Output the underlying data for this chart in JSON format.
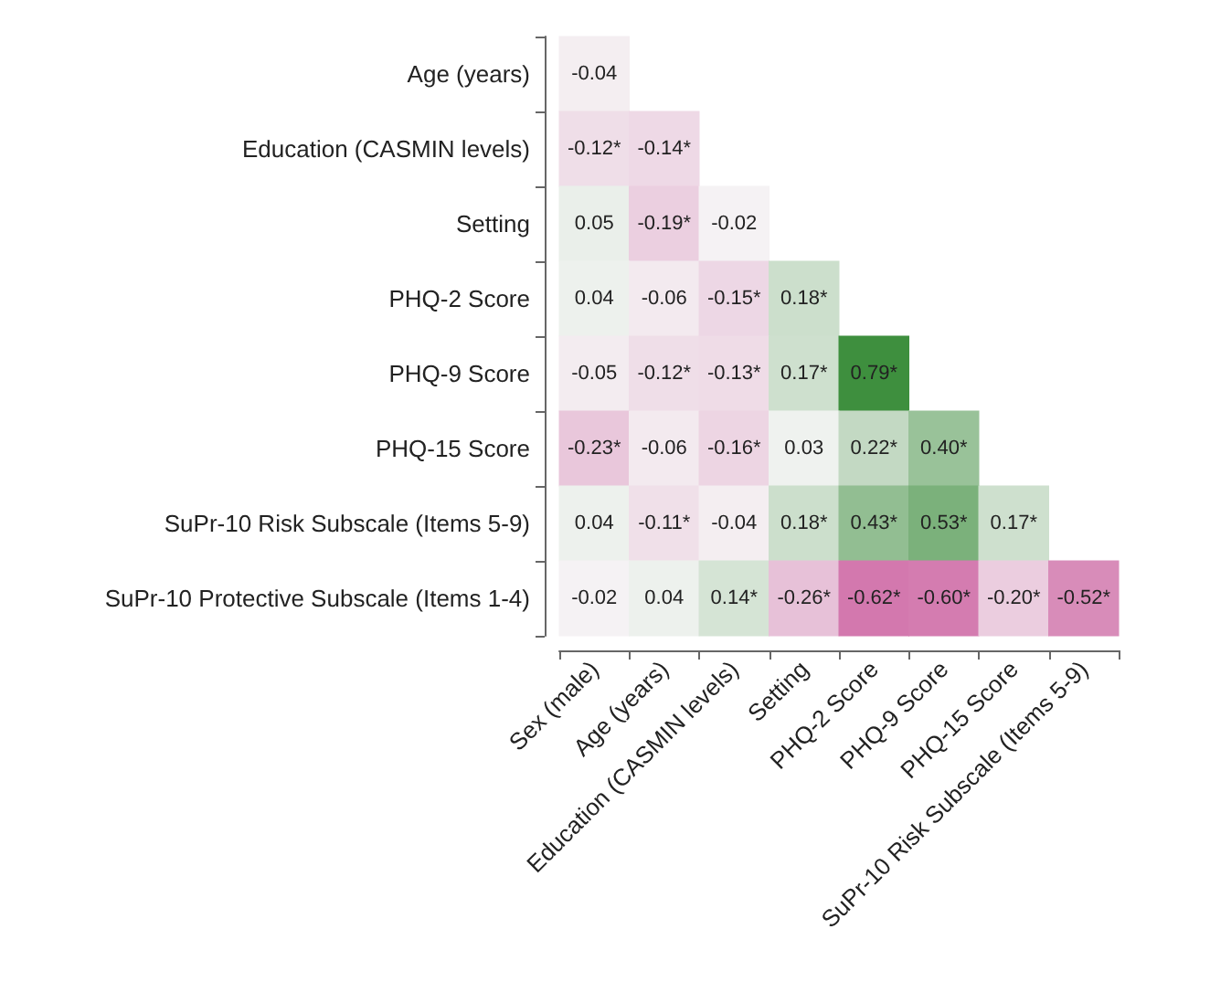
{
  "chart_data": {
    "type": "heatmap",
    "categories": [
      "Sex (male)",
      "Age (years)",
      "Education (CASMIN levels)",
      "Setting",
      "PHQ-2 Score",
      "PHQ-9 Score",
      "PHQ-15 Score",
      "SuPr-10 Risk Subscale (Items 5-9)"
    ],
    "y_categories": [
      "Age (years)",
      "Education (CASMIN levels)",
      "Setting",
      "PHQ-2 Score",
      "PHQ-9 Score",
      "PHQ-15 Score",
      "SuPr-10 Risk Subscale (Items 5-9)",
      "SuPr-10 Protective Subscale (Items 1-4)"
    ],
    "cells": [
      [
        -0.04,
        null,
        null,
        null,
        null,
        null,
        null,
        null
      ],
      [
        -0.12,
        -0.14,
        null,
        null,
        null,
        null,
        null,
        null
      ],
      [
        0.05,
        -0.19,
        -0.02,
        null,
        null,
        null,
        null,
        null
      ],
      [
        0.04,
        -0.06,
        -0.15,
        0.18,
        null,
        null,
        null,
        null
      ],
      [
        -0.05,
        -0.12,
        -0.13,
        0.17,
        0.79,
        null,
        null,
        null
      ],
      [
        -0.23,
        -0.06,
        -0.16,
        0.03,
        0.22,
        0.4,
        null,
        null
      ],
      [
        0.04,
        -0.11,
        -0.04,
        0.18,
        0.43,
        0.53,
        0.17,
        null
      ],
      [
        -0.02,
        0.04,
        0.14,
        -0.26,
        -0.62,
        -0.6,
        -0.2,
        -0.52
      ]
    ],
    "cell_labels": [
      [
        "-0.04",
        null,
        null,
        null,
        null,
        null,
        null,
        null
      ],
      [
        "-0.12*",
        "-0.14*",
        null,
        null,
        null,
        null,
        null,
        null
      ],
      [
        "0.05",
        "-0.19*",
        "-0.02",
        null,
        null,
        null,
        null,
        null
      ],
      [
        "0.04",
        "-0.06",
        "-0.15*",
        "0.18*",
        null,
        null,
        null,
        null
      ],
      [
        "-0.05",
        "-0.12*",
        "-0.13*",
        "0.17*",
        "0.79*",
        null,
        null,
        null
      ],
      [
        "-0.23*",
        "-0.06",
        "-0.16*",
        "0.03",
        "0.22*",
        "0.40*",
        null,
        null
      ],
      [
        "0.04",
        "-0.11*",
        "-0.04",
        "0.18*",
        "0.43*",
        "0.53*",
        "0.17*",
        null
      ],
      [
        "-0.02",
        "0.04",
        "0.14*",
        "-0.26*",
        "-0.62*",
        "-0.60*",
        "-0.20*",
        "-0.52*"
      ]
    ]
  }
}
